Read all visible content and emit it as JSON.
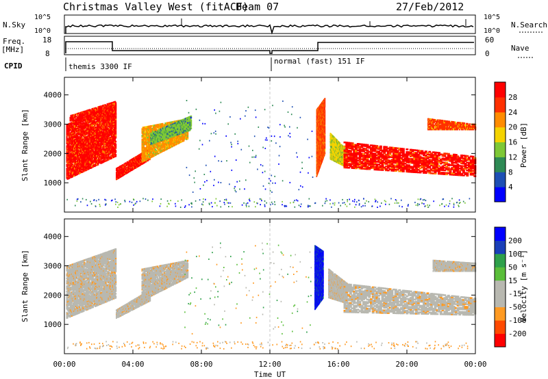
{
  "header": {
    "title": "Christmas Valley West (fitACF)",
    "beam": "Beam 07",
    "date": "27/Feb/2012"
  },
  "top_panels": {
    "nsky": {
      "left_label": "N.Sky",
      "right_label": "N.Search",
      "left_ticks": [
        "10^5",
        "10^0"
      ],
      "right_ticks": [
        "10^5",
        "10^0"
      ]
    },
    "freq": {
      "left_label_1": "Freq.",
      "left_label_2": "[MHz]",
      "right_label": "Nave",
      "left_ticks": [
        "18",
        "8"
      ],
      "right_ticks": [
        "60",
        "0"
      ]
    },
    "cpid": {
      "label": "CPID",
      "segments": [
        {
          "name": "themis 3300 IF",
          "start_hour": 0,
          "end_hour": 12
        },
        {
          "name": "normal (fast) 151 IF",
          "start_hour": 12,
          "end_hour": 24
        }
      ]
    }
  },
  "colors": {
    "power": [
      "#0000ff",
      "#1e4fb4",
      "#2e8a55",
      "#7ec836",
      "#f4d300",
      "#ff8c00",
      "#ff3000",
      "#ff0000"
    ],
    "velocity": [
      "#ff0000",
      "#ff4a00",
      "#ff9a22",
      "#b8b8b0",
      "#b8b8b0",
      "#5abe3a",
      "#2ea04a",
      "#1a3fb8",
      "#0000ff"
    ]
  },
  "chart_data": [
    {
      "type": "heatmap",
      "quantity": "power",
      "ylabel": "Slant Range [km]",
      "ylim": [
        0,
        4600
      ],
      "yticks": [
        1000,
        2000,
        3000,
        4000
      ],
      "xlim": [
        0,
        24
      ],
      "xticks": [
        "00:00",
        "04:00",
        "08:00",
        "12:00",
        "16:00",
        "20:00",
        "00:00"
      ],
      "colorbar": {
        "label": "Power [dB]",
        "ticks": [
          "4",
          "8",
          "12",
          "16",
          "20",
          "24",
          "28"
        ]
      },
      "regions": [
        {
          "t": [
            0.1,
            3.0
          ],
          "r_low": [
            1100,
            1900
          ],
          "r_high": [
            3000,
            3700
          ],
          "level": 7
        },
        {
          "t": [
            3.0,
            5.0
          ],
          "r_low": [
            1100,
            1800
          ],
          "r_high": [
            1500,
            2200
          ],
          "level": 7
        },
        {
          "t": [
            4.5,
            7.2
          ],
          "r_low": [
            1700,
            2500
          ],
          "r_high": [
            2900,
            3200
          ],
          "level": 5
        },
        {
          "t": [
            5.0,
            7.4
          ],
          "r_low": [
            2300,
            2800
          ],
          "r_high": [
            2700,
            3300
          ],
          "level": 3
        },
        {
          "t": [
            14.7,
            15.2
          ],
          "r_low": [
            1200,
            2000
          ],
          "r_high": [
            3500,
            3900
          ],
          "level": 6
        },
        {
          "t": [
            15.5,
            16.5
          ],
          "r_low": [
            1800,
            1500
          ],
          "r_high": [
            2700,
            2100
          ],
          "level": 4
        },
        {
          "t": [
            16.3,
            24.0
          ],
          "r_low": [
            1500,
            1200
          ],
          "r_high": [
            2400,
            1900
          ],
          "level": 7
        },
        {
          "t": [
            21.2,
            24.0
          ],
          "r_low": [
            2800,
            2800
          ],
          "r_high": [
            3200,
            3000
          ],
          "level": 6
        },
        {
          "t": [
            0.3,
            3.0
          ],
          "r_low": [
            3100,
            3200
          ],
          "r_high": [
            3300,
            3800
          ],
          "level": 7
        }
      ],
      "ground_scatter_range": [
        150,
        450
      ]
    },
    {
      "type": "heatmap",
      "quantity": "velocity",
      "ylabel": "Slant Range [km]",
      "ylim": [
        0,
        4600
      ],
      "yticks": [
        1000,
        2000,
        3000,
        4000
      ],
      "xlim": [
        0,
        24
      ],
      "xticks": [
        "00:00",
        "04:00",
        "08:00",
        "12:00",
        "16:00",
        "20:00",
        "00:00"
      ],
      "xlabel": "Time UT",
      "colorbar": {
        "label": "Velocity [m s⁻¹]",
        "ticks": [
          "200",
          "100",
          "50",
          "15",
          "-15",
          "-50",
          "-100",
          "-200"
        ]
      },
      "regions": [
        {
          "t": [
            0.1,
            3.0
          ],
          "r_low": [
            1200,
            1900
          ],
          "r_high": [
            3000,
            3600
          ],
          "level": 4
        },
        {
          "t": [
            3.0,
            5.0
          ],
          "r_low": [
            1200,
            1800
          ],
          "r_high": [
            1500,
            2200
          ],
          "level": 4
        },
        {
          "t": [
            4.5,
            7.2
          ],
          "r_low": [
            1800,
            2600
          ],
          "r_high": [
            2900,
            3200
          ],
          "level": 4
        },
        {
          "t": [
            14.6,
            15.1
          ],
          "r_low": [
            1500,
            1900
          ],
          "r_high": [
            3700,
            3500
          ],
          "level": 8
        },
        {
          "t": [
            15.4,
            16.5
          ],
          "r_low": [
            1900,
            1700
          ],
          "r_high": [
            2900,
            2400
          ],
          "level": 4
        },
        {
          "t": [
            16.3,
            24.0
          ],
          "r_low": [
            1400,
            1300
          ],
          "r_high": [
            2400,
            1900
          ],
          "level": 4
        },
        {
          "t": [
            21.5,
            24.0
          ],
          "r_low": [
            2800,
            2800
          ],
          "r_high": [
            3200,
            3100
          ],
          "level": 4
        }
      ],
      "ground_scatter_range": [
        150,
        400
      ]
    }
  ]
}
